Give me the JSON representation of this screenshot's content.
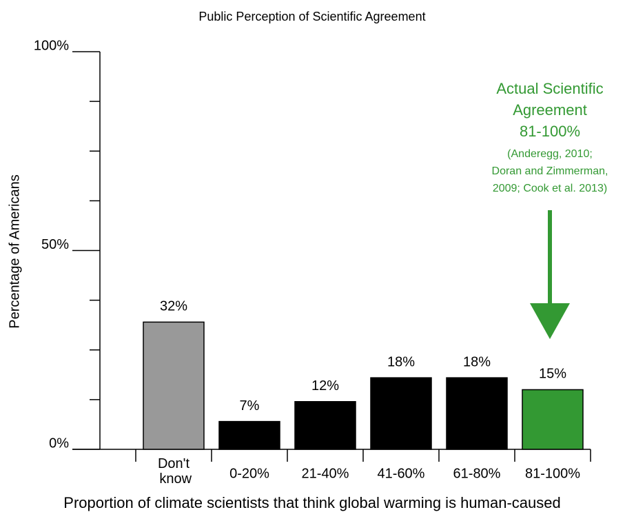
{
  "chart_data": {
    "type": "bar",
    "title": "Public Perception of Scientific Agreement",
    "y_label": "Percentage of Americans",
    "x_label": "Proportion of climate scientists that think global warming is human-caused",
    "categories": [
      "Don't know",
      "0-20%",
      "21-40%",
      "41-60%",
      "61-80%",
      "81-100%"
    ],
    "values": [
      32,
      7,
      12,
      18,
      18,
      15
    ],
    "value_labels": [
      "32%",
      "7%",
      "12%",
      "18%",
      "18%",
      "15%"
    ],
    "colors": [
      "#999999",
      "#000000",
      "#000000",
      "#000000",
      "#000000",
      "#339933"
    ],
    "ylim": [
      0,
      100
    ],
    "yticks": [
      {
        "value": 0,
        "label": "0%"
      },
      {
        "value": 50,
        "label": "50%"
      },
      {
        "value": 100,
        "label": "100%"
      }
    ],
    "minor_yticks": [
      12.5,
      25,
      37.5,
      62.5,
      75,
      87.5
    ],
    "annotation": {
      "color": "#339933",
      "lines": [
        "Actual Scientific",
        "Agreement",
        "81-100%"
      ],
      "source_lines": [
        "(Anderegg, 2010;",
        "Doran and Zimmerman,",
        "2009; Cook et al. 2013)"
      ]
    }
  }
}
